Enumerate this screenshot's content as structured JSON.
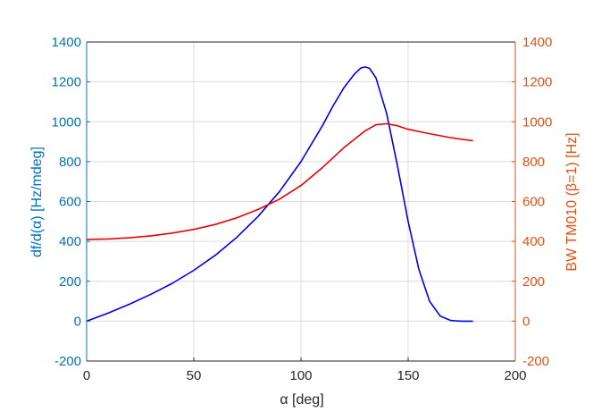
{
  "chart_data": {
    "type": "line",
    "xlabel": "α [deg]",
    "ylabel_left": "df/d(α) [Hz/mdeg]",
    "ylabel_right": "BW TM010 (β=1) [Hz]",
    "xlim": [
      0,
      200
    ],
    "ylim_left": [
      -200,
      1400
    ],
    "ylim_right": [
      -200,
      1400
    ],
    "x_ticks": [
      "0",
      "50",
      "100",
      "150",
      "200"
    ],
    "y_ticks_left": [
      "-200",
      "0",
      "200",
      "400",
      "600",
      "800",
      "1000",
      "1200",
      "1400"
    ],
    "y_ticks_right": [
      "-200",
      "0",
      "200",
      "400",
      "600",
      "800",
      "1000",
      "1200",
      "1400"
    ],
    "grid": true,
    "colors": {
      "left_axis": "#0072BD",
      "right_axis": "#D95319",
      "x_axis": "#262626"
    },
    "series": [
      {
        "axis": "left",
        "color": "#0000EE",
        "x": [
          0,
          10,
          20,
          30,
          40,
          50,
          60,
          70,
          80,
          90,
          100,
          110,
          115,
          120,
          125,
          128,
          130,
          132,
          135,
          140,
          145,
          150,
          155,
          160,
          165,
          170,
          175,
          180
        ],
        "y": [
          0,
          40,
          85,
          135,
          190,
          255,
          330,
          420,
          525,
          650,
          800,
          980,
          1080,
          1170,
          1240,
          1270,
          1275,
          1268,
          1220,
          1040,
          780,
          500,
          260,
          100,
          25,
          3,
          0,
          0
        ]
      },
      {
        "axis": "right",
        "color": "#EE0000",
        "x": [
          0,
          10,
          20,
          30,
          40,
          50,
          60,
          70,
          80,
          90,
          100,
          110,
          120,
          130,
          135,
          140,
          145,
          150,
          160,
          170,
          180
        ],
        "y": [
          410,
          412,
          418,
          428,
          442,
          460,
          485,
          518,
          560,
          612,
          680,
          770,
          870,
          955,
          985,
          990,
          980,
          962,
          940,
          920,
          905
        ]
      }
    ]
  }
}
